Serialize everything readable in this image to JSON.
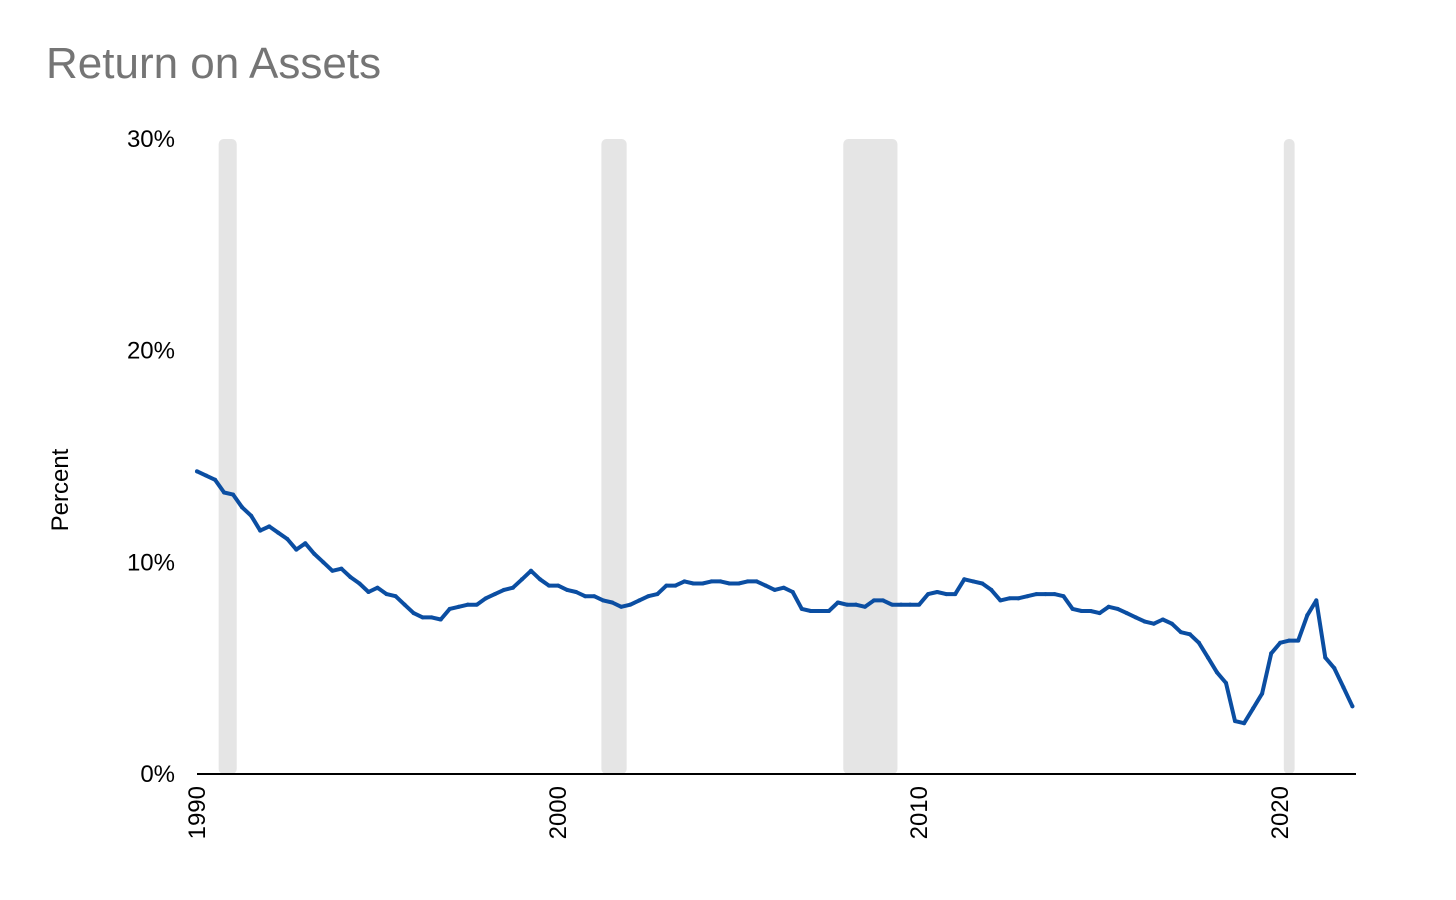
{
  "chart_data": {
    "type": "line",
    "title": "Return on Assets",
    "xlabel": "",
    "ylabel": "Percent",
    "xlim": [
      1990.0,
      2022.1
    ],
    "ylim": [
      0,
      30
    ],
    "y_ticks": [
      "0%",
      "10%",
      "20%",
      "30%"
    ],
    "y_tick_values": [
      0,
      10,
      20,
      30
    ],
    "x_ticks": [
      "1990",
      "2000",
      "2010",
      "2020"
    ],
    "x_tick_values": [
      1990,
      2000,
      2010,
      2020
    ],
    "grid": false,
    "legend": "none",
    "colors": {
      "line": "#0b4ea2",
      "recession": "#e5e5e5",
      "axis": "#000000",
      "title": "#757575"
    },
    "recessions": [
      [
        1990.6,
        1991.1
      ],
      [
        2001.2,
        2001.9
      ],
      [
        2007.9,
        2009.4
      ],
      [
        2020.1,
        2020.4
      ]
    ],
    "series": [
      {
        "values": [
          [
            1990.0,
            14.3
          ],
          [
            1990.25,
            14.1
          ],
          [
            1990.5,
            13.9
          ],
          [
            1990.75,
            13.3
          ],
          [
            1991.0,
            13.2
          ],
          [
            1991.25,
            12.6
          ],
          [
            1991.5,
            12.2
          ],
          [
            1991.75,
            11.5
          ],
          [
            1992.0,
            11.7
          ],
          [
            1992.25,
            11.4
          ],
          [
            1992.5,
            11.1
          ],
          [
            1992.75,
            10.6
          ],
          [
            1993.0,
            10.9
          ],
          [
            1993.25,
            10.4
          ],
          [
            1993.5,
            10.0
          ],
          [
            1993.75,
            9.6
          ],
          [
            1994.0,
            9.7
          ],
          [
            1994.25,
            9.3
          ],
          [
            1994.5,
            9.0
          ],
          [
            1994.75,
            8.6
          ],
          [
            1995.0,
            8.8
          ],
          [
            1995.25,
            8.5
          ],
          [
            1995.5,
            8.4
          ],
          [
            1995.75,
            8.0
          ],
          [
            1996.0,
            7.6
          ],
          [
            1996.25,
            7.4
          ],
          [
            1996.5,
            7.4
          ],
          [
            1996.75,
            7.3
          ],
          [
            1997.0,
            7.8
          ],
          [
            1997.25,
            7.9
          ],
          [
            1997.5,
            8.0
          ],
          [
            1997.75,
            8.0
          ],
          [
            1998.0,
            8.3
          ],
          [
            1998.25,
            8.5
          ],
          [
            1998.5,
            8.7
          ],
          [
            1998.75,
            8.8
          ],
          [
            1999.0,
            9.2
          ],
          [
            1999.25,
            9.6
          ],
          [
            1999.5,
            9.2
          ],
          [
            1999.75,
            8.9
          ],
          [
            2000.0,
            8.9
          ],
          [
            2000.25,
            8.7
          ],
          [
            2000.5,
            8.6
          ],
          [
            2000.75,
            8.4
          ],
          [
            2001.0,
            8.4
          ],
          [
            2001.25,
            8.2
          ],
          [
            2001.5,
            8.1
          ],
          [
            2001.75,
            7.9
          ],
          [
            2002.0,
            8.0
          ],
          [
            2002.25,
            8.2
          ],
          [
            2002.5,
            8.4
          ],
          [
            2002.75,
            8.5
          ],
          [
            2003.0,
            8.9
          ],
          [
            2003.25,
            8.9
          ],
          [
            2003.5,
            9.1
          ],
          [
            2003.75,
            9.0
          ],
          [
            2004.0,
            9.0
          ],
          [
            2004.25,
            9.1
          ],
          [
            2004.5,
            9.1
          ],
          [
            2004.75,
            9.0
          ],
          [
            2005.0,
            9.0
          ],
          [
            2005.25,
            9.1
          ],
          [
            2005.5,
            9.1
          ],
          [
            2005.75,
            8.9
          ],
          [
            2006.0,
            8.7
          ],
          [
            2006.25,
            8.8
          ],
          [
            2006.5,
            8.6
          ],
          [
            2006.75,
            7.8
          ],
          [
            2007.0,
            7.7
          ],
          [
            2007.25,
            7.7
          ],
          [
            2007.5,
            7.7
          ],
          [
            2007.75,
            8.1
          ],
          [
            2008.0,
            8.0
          ],
          [
            2008.25,
            8.0
          ],
          [
            2008.5,
            7.9
          ],
          [
            2008.75,
            8.2
          ],
          [
            2009.0,
            8.2
          ],
          [
            2009.25,
            8.0
          ],
          [
            2009.5,
            8.0
          ],
          [
            2009.75,
            8.0
          ],
          [
            2010.0,
            8.0
          ],
          [
            2010.25,
            8.5
          ],
          [
            2010.5,
            8.6
          ],
          [
            2010.75,
            8.5
          ],
          [
            2011.0,
            8.5
          ],
          [
            2011.25,
            9.2
          ],
          [
            2011.5,
            9.1
          ],
          [
            2011.75,
            9.0
          ],
          [
            2012.0,
            8.7
          ],
          [
            2012.25,
            8.2
          ],
          [
            2012.5,
            8.3
          ],
          [
            2012.75,
            8.3
          ],
          [
            2013.0,
            8.4
          ],
          [
            2013.25,
            8.5
          ],
          [
            2013.5,
            8.5
          ],
          [
            2013.75,
            8.5
          ],
          [
            2014.0,
            8.4
          ],
          [
            2014.25,
            7.8
          ],
          [
            2014.5,
            7.7
          ],
          [
            2014.75,
            7.7
          ],
          [
            2015.0,
            7.6
          ],
          [
            2015.25,
            7.9
          ],
          [
            2015.5,
            7.8
          ],
          [
            2015.75,
            7.6
          ],
          [
            2016.0,
            7.4
          ],
          [
            2016.25,
            7.2
          ],
          [
            2016.5,
            7.1
          ],
          [
            2016.75,
            7.3
          ],
          [
            2017.0,
            7.1
          ],
          [
            2017.25,
            6.7
          ],
          [
            2017.5,
            6.6
          ],
          [
            2017.75,
            6.2
          ],
          [
            2018.0,
            5.5
          ],
          [
            2018.25,
            4.8
          ],
          [
            2018.5,
            4.3
          ],
          [
            2018.75,
            2.5
          ],
          [
            2019.0,
            2.4
          ],
          [
            2019.25,
            3.1
          ],
          [
            2019.5,
            3.8
          ],
          [
            2019.75,
            5.7
          ],
          [
            2020.0,
            6.2
          ],
          [
            2020.25,
            6.3
          ],
          [
            2020.5,
            6.3
          ],
          [
            2020.75,
            7.5
          ],
          [
            2021.0,
            8.2
          ],
          [
            2021.25,
            5.5
          ],
          [
            2021.5,
            5.0
          ],
          [
            2021.75,
            4.1
          ],
          [
            2022.0,
            3.2
          ]
        ]
      }
    ]
  }
}
